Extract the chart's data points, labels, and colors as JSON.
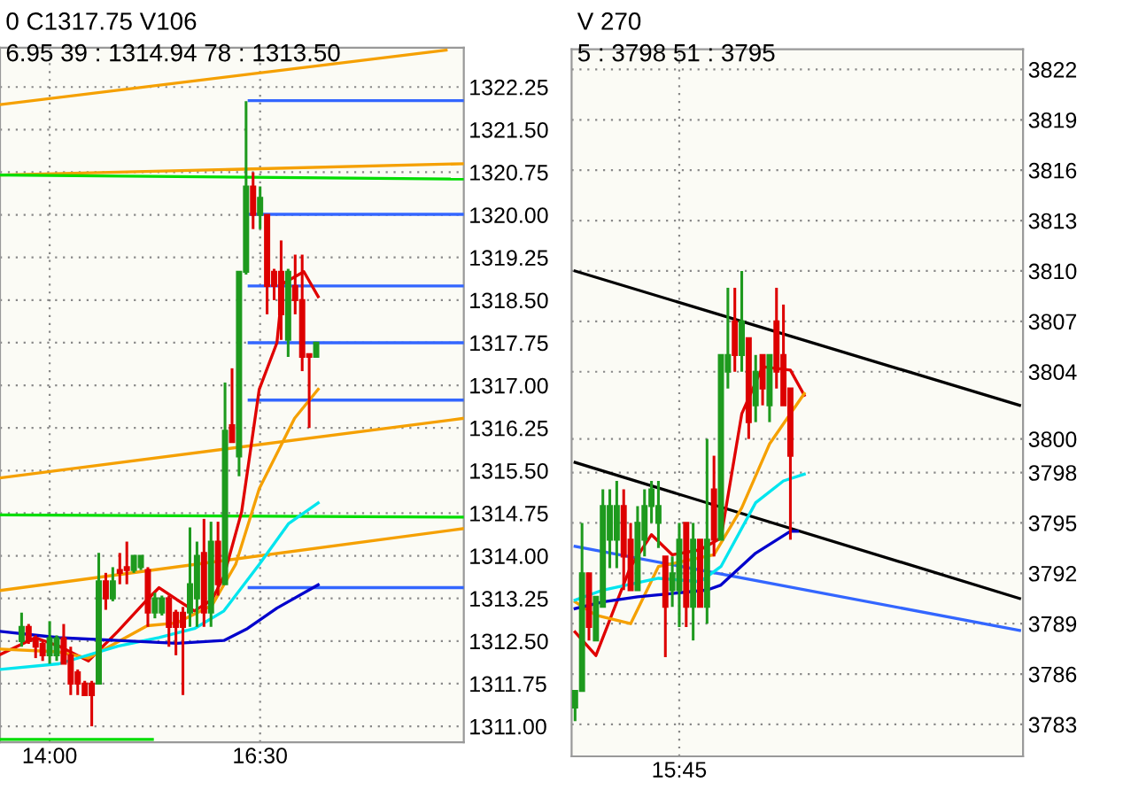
{
  "chart_data": [
    {
      "type": "candlestick",
      "annotations": [
        "0 C1317.75 V106",
        "6.95 39 : 1314.94 78 : 1313.50"
      ],
      "x": [
        13.6667,
        13.75,
        13.8333,
        13.9167,
        14,
        14.0833,
        14.1667,
        14.25,
        14.3333,
        14.4167,
        14.5,
        14.5833,
        14.6667,
        14.75,
        14.8333,
        14.9167,
        15,
        15.0833,
        15.1667,
        15.25,
        15.3333,
        15.4167,
        15.5,
        15.5833,
        15.6667,
        15.75,
        15.8333,
        15.9167,
        16,
        16.0833,
        16.1667,
        16.25,
        16.3333,
        16.4167,
        16.5,
        16.5833,
        16.6667,
        16.75,
        16.8333,
        16.9167,
        17,
        17.0833,
        17.1667
      ],
      "ohlc": [
        [
          1312.5,
          1313.0,
          1312.4,
          1312.75
        ],
        [
          1312.75,
          1312.8,
          1312.45,
          1312.5
        ],
        [
          1312.55,
          1312.6,
          1312.2,
          1312.4
        ],
        [
          1312.45,
          1312.5,
          1312.15,
          1312.25
        ],
        [
          1312.25,
          1312.85,
          1312.1,
          1312.55
        ],
        [
          1312.25,
          1312.6,
          1312.15,
          1312.55
        ],
        [
          1312.55,
          1312.8,
          1312.1,
          1312.1
        ],
        [
          1312.25,
          1312.4,
          1311.55,
          1311.75
        ],
        [
          1311.95,
          1312.0,
          1311.55,
          1311.75
        ],
        [
          1311.75,
          1311.8,
          1311.55,
          1311.55
        ],
        [
          1311.75,
          1311.8,
          1311.0,
          1311.55
        ],
        [
          1311.75,
          1314.05,
          1311.75,
          1313.55
        ],
        [
          1313.55,
          1313.7,
          1313.05,
          1313.25
        ],
        [
          1313.25,
          1313.8,
          1313.2,
          1313.55
        ],
        [
          1313.75,
          1314.05,
          1313.5,
          1313.7
        ],
        [
          1313.8,
          1314.25,
          1313.5,
          1313.75
        ],
        [
          1313.75,
          1314.0,
          1313.7,
          1314.0
        ],
        [
          1313.8,
          1314.0,
          1313.75,
          1314.0
        ],
        [
          1313.75,
          1313.8,
          1312.75,
          1313.0
        ],
        [
          1313.0,
          1313.35,
          1312.9,
          1313.25
        ],
        [
          1313.0,
          1313.3,
          1312.95,
          1313.25
        ],
        [
          1313.25,
          1313.3,
          1312.4,
          1312.75
        ],
        [
          1313.0,
          1313.05,
          1312.25,
          1312.75
        ],
        [
          1313.0,
          1313.1,
          1311.55,
          1312.75
        ],
        [
          1313.0,
          1314.5,
          1312.75,
          1313.5
        ],
        [
          1313.25,
          1314.25,
          1312.75,
          1314.0
        ],
        [
          1314.05,
          1314.65,
          1312.75,
          1313.0
        ],
        [
          1313.0,
          1314.6,
          1312.75,
          1314.25
        ],
        [
          1314.25,
          1314.6,
          1313.3,
          1313.5
        ],
        [
          1313.5,
          1317.05,
          1313.5,
          1316.2
        ],
        [
          1316.3,
          1317.3,
          1316.0,
          1316.0
        ],
        [
          1315.75,
          1319.0,
          1315.4,
          1319.0
        ],
        [
          1319.0,
          1322.0,
          1318.95,
          1320.5
        ],
        [
          1320.5,
          1320.75,
          1319.75,
          1320.0
        ],
        [
          1320.0,
          1320.5,
          1319.75,
          1320.3
        ],
        [
          1320.0,
          1320.0,
          1318.25,
          1318.75
        ],
        [
          1319.0,
          1319.05,
          1318.5,
          1318.75
        ],
        [
          1319.0,
          1319.55,
          1317.8,
          1318.25
        ],
        [
          1317.8,
          1319.05,
          1317.5,
          1319.0
        ],
        [
          1318.75,
          1319.3,
          1318.25,
          1318.5
        ],
        [
          1318.5,
          1319.3,
          1317.25,
          1317.5
        ],
        [
          1317.55,
          1317.55,
          1316.25,
          1317.5
        ],
        [
          1317.5,
          1317.75,
          1317.5,
          1317.75
        ]
      ],
      "colors": [
        "#1e9a1e",
        "#dd0000",
        "#dd0000",
        "#dd0000",
        "#1e9a1e",
        "#1e9a1e",
        "#dd0000",
        "#dd0000",
        "#dd0000",
        "#dd0000",
        "#dd0000",
        "#1e9a1e",
        "#dd0000",
        "#1e9a1e",
        "#dd0000",
        "#dd0000",
        "#1e9a1e",
        "#1e9a1e",
        "#dd0000",
        "#1e9a1e",
        "#1e9a1e",
        "#dd0000",
        "#dd0000",
        "#dd0000",
        "#1e9a1e",
        "#1e9a1e",
        "#dd0000",
        "#1e9a1e",
        "#dd0000",
        "#1e9a1e",
        "#dd0000",
        "#1e9a1e",
        "#1e9a1e",
        "#dd0000",
        "#1e9a1e",
        "#dd0000",
        "#dd0000",
        "#dd0000",
        "#1e9a1e",
        "#dd0000",
        "#dd0000",
        "#dd0000",
        "#1e9a1e"
      ],
      "series": [
        {
          "type": "line",
          "color": "#f5a000",
          "x": [
            13.41,
            18.92
          ],
          "values": [
            1315.37,
            1316.42
          ]
        },
        {
          "type": "line",
          "color": "#f5a000",
          "x": [
            13.41,
            18.71
          ],
          "values": [
            1321.94,
            1322.9
          ]
        },
        {
          "type": "line",
          "color": "#f5a000",
          "x": [
            13.41,
            18.92
          ],
          "values": [
            1320.7,
            1320.9
          ]
        },
        {
          "type": "line",
          "color": "#f5a000",
          "x": [
            13.41,
            18.92
          ],
          "values": [
            1313.39,
            1314.48
          ]
        },
        {
          "type": "line",
          "color": "#00dd00",
          "x": [
            13.41,
            18.92
          ],
          "values": [
            1314.72,
            1314.68
          ]
        },
        {
          "type": "line",
          "color": "#00dd00",
          "x": [
            13.41,
            18.92
          ],
          "values": [
            1320.7,
            1320.63
          ]
        },
        {
          "type": "line",
          "color": "#00dd00",
          "x": [
            13.41,
            15.22
          ],
          "values": [
            1310.77,
            1310.77
          ]
        },
        {
          "type": "line",
          "color": "#3366ff",
          "x": [
            16.37,
            18.92
          ],
          "values": [
            1322.01,
            1322.01
          ]
        },
        {
          "type": "line",
          "color": "#3366ff",
          "x": [
            16.37,
            18.92
          ],
          "values": [
            1320.01,
            1320.01
          ]
        },
        {
          "type": "line",
          "color": "#3366ff",
          "x": [
            16.37,
            18.92
          ],
          "values": [
            1318.75,
            1318.75
          ]
        },
        {
          "type": "line",
          "color": "#3366ff",
          "x": [
            16.37,
            18.92
          ],
          "values": [
            1317.75,
            1317.75
          ]
        },
        {
          "type": "line",
          "color": "#3366ff",
          "x": [
            16.37,
            18.92
          ],
          "values": [
            1316.74,
            1316.74
          ]
        },
        {
          "type": "line",
          "color": "#3366ff",
          "x": [
            16.37,
            18.92
          ],
          "values": [
            1313.44,
            1313.44
          ]
        },
        {
          "type": "line",
          "color": "#e00000",
          "x": [
            13.41,
            13.83,
            14.11,
            14.46,
            14.81,
            15.16,
            15.3,
            15.51,
            15.72,
            15.93,
            16.07,
            16.28,
            16.49,
            16.7,
            16.77,
            17.02,
            17.19
          ],
          "values": [
            1312.26,
            1312.56,
            1312.41,
            1312.15,
            1312.67,
            1313.23,
            1313.44,
            1313.23,
            1313.03,
            1313.23,
            1313.64,
            1314.77,
            1316.93,
            1317.75,
            1318.79,
            1319.0,
            1318.56
          ]
        },
        {
          "type": "line",
          "color": "#f5a000",
          "x": [
            13.41,
            14.11,
            14.46,
            15.16,
            15.51,
            15.93,
            16.21,
            16.49,
            16.91,
            17.19
          ],
          "values": [
            1312.36,
            1312.31,
            1312.2,
            1312.77,
            1312.82,
            1313.13,
            1313.85,
            1315.18,
            1316.42,
            1316.93
          ]
        },
        {
          "type": "line",
          "color": "#00e5ee",
          "x": [
            13.41,
            14.11,
            14.81,
            15.3,
            15.72,
            16.07,
            16.49,
            16.84,
            17.19
          ],
          "values": [
            1312.0,
            1312.1,
            1312.41,
            1312.56,
            1312.72,
            1313.03,
            1313.85,
            1314.57,
            1314.93
          ]
        },
        {
          "type": "line",
          "color": "#0000cc",
          "x": [
            13.41,
            14.11,
            14.81,
            15.51,
            16.07,
            16.35,
            16.7,
            17.19
          ],
          "values": [
            1312.67,
            1312.56,
            1312.51,
            1312.46,
            1312.51,
            1312.72,
            1313.08,
            1313.49
          ]
        }
      ],
      "xlim": [
        13.41,
        18.92
      ],
      "ylim": [
        1310.72,
        1322.94
      ],
      "xticks": [
        {
          "value": 14,
          "label": "14:00"
        },
        {
          "value": 16.5,
          "label": "16:30"
        }
      ],
      "yticks": [
        {
          "value": 1311.0,
          "label": "1311.00"
        },
        {
          "value": 1311.75,
          "label": "1311.75"
        },
        {
          "value": 1312.5,
          "label": "1312.50"
        },
        {
          "value": 1313.25,
          "label": "1313.25"
        },
        {
          "value": 1314.0,
          "label": "1314.00"
        },
        {
          "value": 1314.75,
          "label": "1314.75"
        },
        {
          "value": 1315.5,
          "label": "1315.50"
        },
        {
          "value": 1316.25,
          "label": "1316.25"
        },
        {
          "value": 1317.0,
          "label": "1317.00"
        },
        {
          "value": 1317.75,
          "label": "1317.75"
        },
        {
          "value": 1318.5,
          "label": "1318.50"
        },
        {
          "value": 1319.25,
          "label": "1319.25"
        },
        {
          "value": 1320.0,
          "label": "1320.00"
        },
        {
          "value": 1320.75,
          "label": "1320.75"
        },
        {
          "value": 1321.5,
          "label": "1321.50"
        },
        {
          "value": 1322.25,
          "label": "1322.25"
        }
      ],
      "grid": true
    },
    {
      "type": "candlestick",
      "annotations": [
        "V 270",
        "5 : 3798 51 : 3795"
      ],
      "categories": [
        null,
        null,
        null,
        null,
        null,
        null,
        null,
        null,
        null,
        null,
        null,
        null,
        null,
        null,
        null,
        "15:45",
        null,
        null,
        null,
        null,
        null,
        null,
        null,
        null,
        null,
        null,
        null,
        null,
        null,
        null,
        null,
        null,
        null,
        null,
        null,
        null,
        null,
        null,
        null,
        null,
        null,
        null,
        null,
        null,
        null,
        null,
        null,
        null,
        null,
        null,
        null,
        null,
        null,
        null,
        null,
        null,
        null,
        null,
        null,
        null,
        null,
        null,
        null,
        null,
        null
      ],
      "ohlc": [
        [
          3784,
          3785,
          3783.2,
          3785
        ],
        [
          3785,
          3795,
          3785,
          3792
        ],
        [
          3792,
          3792,
          3788,
          3788.8
        ],
        [
          3788,
          3790.6,
          3788,
          3790.6
        ],
        [
          3790,
          3797,
          3790,
          3796
        ],
        [
          3794,
          3797,
          3792.3,
          3796
        ],
        [
          3794,
          3797.5,
          3792.3,
          3796
        ],
        [
          3796,
          3797,
          3791,
          3793
        ],
        [
          3794,
          3795,
          3791,
          3791
        ],
        [
          3791,
          3796,
          3791,
          3795
        ],
        [
          3794,
          3797,
          3793,
          3796
        ],
        [
          3796,
          3797.5,
          3795,
          3797
        ],
        [
          3795,
          3797.5,
          3793.5,
          3796
        ],
        [
          3793,
          3793,
          3787,
          3790
        ],
        [
          3791,
          3793,
          3790,
          3792
        ],
        [
          3791,
          3795,
          3788.8,
          3794
        ],
        [
          3795,
          3795,
          3788.8,
          3790
        ],
        [
          3790,
          3795,
          3788,
          3794
        ],
        [
          3794,
          3794,
          3790,
          3790
        ],
        [
          3790,
          3800,
          3789,
          3794
        ],
        [
          3797,
          3799,
          3793,
          3794
        ],
        [
          3794,
          3805,
          3794,
          3805
        ],
        [
          3804,
          3809,
          3803,
          3805
        ],
        [
          3807,
          3809,
          3804,
          3805
        ],
        [
          3805,
          3810,
          3804,
          3807
        ],
        [
          3806,
          3806,
          3800,
          3801
        ],
        [
          3802,
          3805,
          3801,
          3804
        ],
        [
          3805,
          3805,
          3802,
          3803
        ],
        [
          3802,
          3805,
          3801,
          3805
        ],
        [
          3807,
          3809,
          3803,
          3804
        ],
        [
          3805,
          3808,
          3802,
          3802
        ],
        [
          3803,
          3803,
          3794,
          3799
        ],
        null,
        null,
        null,
        null,
        null,
        null,
        null,
        null,
        null,
        null,
        null,
        null,
        null,
        null,
        null,
        null,
        null,
        null,
        null,
        null,
        null,
        null,
        null,
        null,
        null,
        null,
        null,
        null,
        null,
        null,
        null,
        null,
        null
      ],
      "colors": [
        "#1e9a1e",
        "#1e9a1e",
        "#dd0000",
        "#1e9a1e",
        "#1e9a1e",
        "#1e9a1e",
        "#1e9a1e",
        "#dd0000",
        "#dd0000",
        "#1e9a1e",
        "#1e9a1e",
        "#1e9a1e",
        "#1e9a1e",
        "#dd0000",
        "#1e9a1e",
        "#1e9a1e",
        "#dd0000",
        "#1e9a1e",
        "#dd0000",
        "#1e9a1e",
        "#dd0000",
        "#1e9a1e",
        "#1e9a1e",
        "#dd0000",
        "#1e9a1e",
        "#dd0000",
        "#1e9a1e",
        "#dd0000",
        "#1e9a1e",
        "#dd0000",
        "#dd0000",
        "#dd0000",
        null,
        null,
        null,
        null,
        null,
        null,
        null,
        null,
        null,
        null,
        null,
        null,
        null,
        null,
        null,
        null,
        null,
        null,
        null,
        null,
        null,
        null,
        null,
        null,
        null,
        null,
        null,
        null,
        null,
        null,
        null,
        null,
        null
      ],
      "series": [
        {
          "type": "line",
          "color": "#000000",
          "values": [
            3810.0,
            null,
            null,
            null,
            null,
            null,
            null,
            null,
            null,
            null,
            null,
            null,
            null,
            null,
            null,
            null,
            null,
            null,
            null,
            null,
            null,
            null,
            null,
            null,
            null,
            null,
            null,
            null,
            null,
            null,
            null,
            null,
            null,
            null,
            null,
            null,
            null,
            null,
            null,
            null,
            null,
            null,
            null,
            null,
            null,
            null,
            null,
            null,
            null,
            null,
            null,
            null,
            null,
            null,
            null,
            null,
            null,
            null,
            null,
            null,
            null,
            null,
            null,
            null,
            3802.0
          ]
        },
        {
          "type": "line",
          "color": "#000000",
          "values": [
            3798.6,
            null,
            null,
            null,
            null,
            null,
            null,
            null,
            null,
            null,
            null,
            null,
            null,
            null,
            null,
            null,
            null,
            null,
            null,
            null,
            null,
            null,
            null,
            null,
            null,
            null,
            null,
            null,
            null,
            null,
            null,
            null,
            null,
            null,
            null,
            null,
            null,
            null,
            null,
            null,
            null,
            null,
            null,
            null,
            null,
            null,
            null,
            null,
            null,
            null,
            null,
            null,
            null,
            null,
            null,
            null,
            null,
            null,
            null,
            null,
            null,
            null,
            null,
            null,
            3790.5
          ]
        },
        {
          "type": "line",
          "color": "#3366ff",
          "values": [
            3793.6,
            null,
            null,
            null,
            null,
            null,
            null,
            null,
            null,
            null,
            null,
            null,
            null,
            null,
            null,
            null,
            null,
            null,
            null,
            null,
            null,
            null,
            null,
            null,
            null,
            null,
            null,
            null,
            null,
            null,
            null,
            null,
            null,
            null,
            null,
            null,
            null,
            null,
            null,
            null,
            null,
            null,
            null,
            null,
            null,
            null,
            null,
            null,
            null,
            null,
            null,
            null,
            null,
            null,
            null,
            null,
            null,
            null,
            null,
            null,
            null,
            null,
            null,
            null,
            3788.6
          ]
        },
        {
          "type": "line",
          "color": "#e00000",
          "values": [
            3788.5,
            null,
            null,
            3787.1,
            null,
            null,
            null,
            null,
            3792.4,
            null,
            null,
            3794.3,
            null,
            null,
            3793.1,
            null,
            null,
            null,
            3793.4,
            null,
            null,
            3794.1,
            null,
            null,
            3801.5,
            null,
            null,
            3804.3,
            null,
            null,
            null,
            3804.1,
            null,
            3802.6,
            null,
            null,
            null,
            null,
            null,
            null,
            null,
            null,
            null,
            null,
            null,
            null,
            null,
            null,
            null,
            null,
            null,
            null,
            null,
            null,
            null,
            null,
            null,
            null,
            null,
            null,
            null,
            null,
            null,
            null,
            null
          ]
        },
        {
          "type": "line",
          "color": "#f5a000",
          "values": [
            3790.3,
            null,
            null,
            3789.5,
            null,
            null,
            null,
            null,
            3789.0,
            null,
            null,
            null,
            3792.4,
            null,
            null,
            null,
            null,
            null,
            null,
            null,
            3793.1,
            null,
            null,
            null,
            3795.9,
            null,
            null,
            null,
            3799.7,
            null,
            null,
            null,
            null,
            3802.7,
            null,
            null,
            null,
            null,
            null,
            null,
            null,
            null,
            null,
            null,
            null,
            null,
            null,
            null,
            null,
            null,
            null,
            null,
            null,
            null,
            null,
            null,
            null,
            null,
            null,
            null,
            null,
            null,
            null,
            null,
            null
          ]
        },
        {
          "type": "line",
          "color": "#00e5ee",
          "values": [
            3790.4,
            null,
            null,
            null,
            3791.0,
            null,
            null,
            null,
            null,
            null,
            null,
            null,
            3791.7,
            null,
            null,
            null,
            null,
            null,
            3791.5,
            null,
            null,
            3792.4,
            null,
            null,
            null,
            null,
            3796.2,
            null,
            null,
            null,
            3797.5,
            null,
            null,
            3797.9,
            null,
            null,
            null,
            null,
            null,
            null,
            null,
            null,
            null,
            null,
            null,
            null,
            null,
            null,
            null,
            null,
            null,
            null,
            null,
            null,
            null,
            null,
            null,
            null,
            null,
            null,
            null,
            null,
            null,
            null,
            null
          ]
        },
        {
          "type": "line",
          "color": "#0000cc",
          "values": [
            3789.9,
            null,
            null,
            null,
            3790.3,
            null,
            null,
            null,
            null,
            3790.6,
            null,
            null,
            null,
            null,
            3790.8,
            null,
            null,
            null,
            null,
            3791.0,
            null,
            3791.3,
            null,
            null,
            null,
            null,
            3793.2,
            null,
            null,
            null,
            null,
            3794.5,
            3794.5,
            null,
            null,
            null,
            null,
            null,
            null,
            null,
            null,
            null,
            null,
            null,
            null,
            null,
            null,
            null,
            null,
            null,
            null,
            null,
            null,
            null,
            null,
            null,
            null,
            null,
            null,
            null,
            null,
            null,
            null,
            null,
            null
          ]
        }
      ],
      "ylim": [
        3781.1,
        3823.2
      ],
      "yticks": [
        3783,
        3786,
        3789,
        3792,
        3795,
        3798,
        3800,
        3804,
        3807,
        3810,
        3813,
        3816,
        3819,
        3822
      ],
      "grid": true
    }
  ]
}
